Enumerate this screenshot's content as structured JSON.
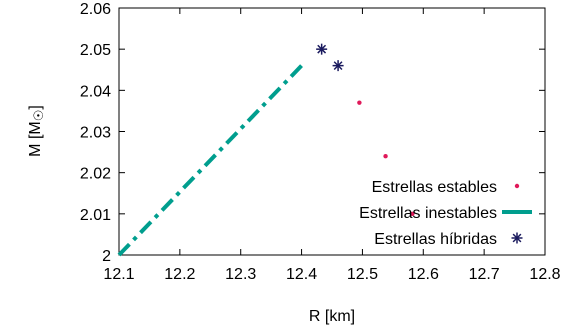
{
  "chart_data": {
    "type": "scatter",
    "xlabel": "R [km]",
    "ylabel_text": "M [M",
    "ylabel_symbol": "☉",
    "ylabel_close": "]",
    "xlim": [
      12.1,
      12.8
    ],
    "ylim": [
      2.0,
      2.06
    ],
    "x_ticks": [
      "12.1",
      "12.2",
      "12.3",
      "12.4",
      "12.5",
      "12.6",
      "12.7",
      "12.8"
    ],
    "y_ticks": [
      "2",
      "2.01",
      "2.02",
      "2.03",
      "2.04",
      "2.05",
      "2.06"
    ],
    "grid": false,
    "legend_position": "bottom-right",
    "series": [
      {
        "name": "Estrellas estables",
        "style": "dots",
        "color": "#e0195a",
        "points": [
          [
            12.495,
            2.037
          ],
          [
            12.538,
            2.024
          ],
          [
            12.582,
            2.01
          ]
        ]
      },
      {
        "name": "Estrellas inestables",
        "style": "dash-dot-line",
        "color": "#009e8e",
        "points": [
          [
            12.1,
            2.0
          ],
          [
            12.4,
            2.046
          ]
        ]
      },
      {
        "name": "Estrellas híbridas",
        "style": "asterisk",
        "color": "#1a1a5e",
        "points": [
          [
            12.433,
            2.05
          ],
          [
            12.46,
            2.046
          ]
        ]
      }
    ]
  }
}
